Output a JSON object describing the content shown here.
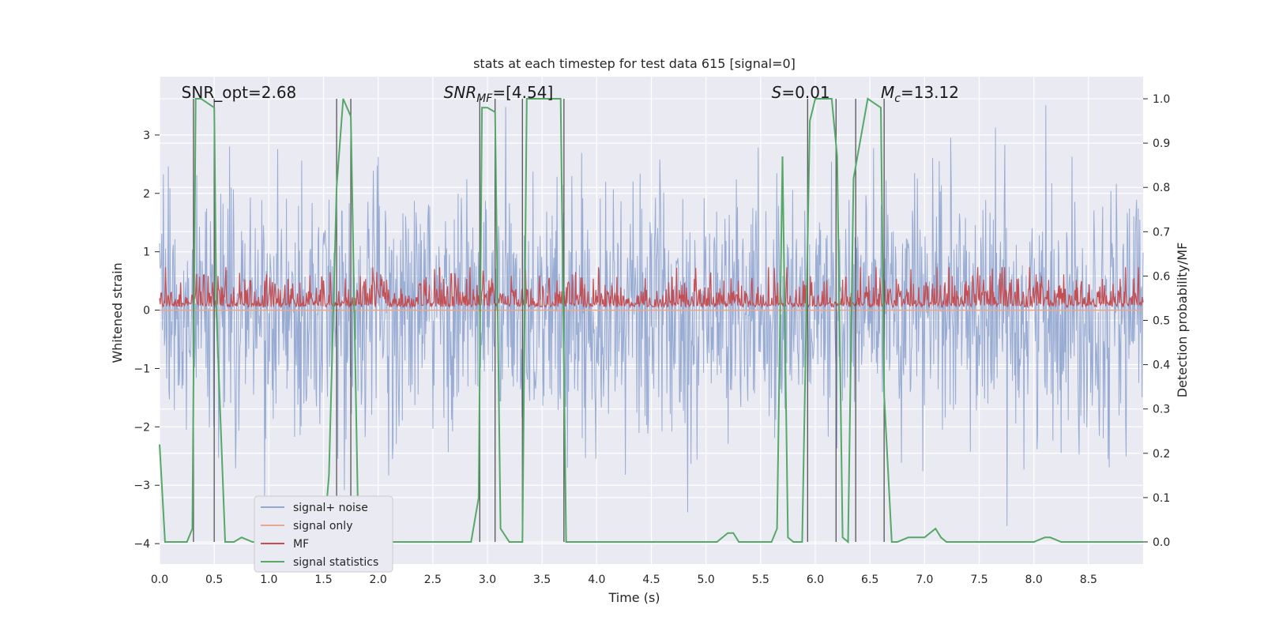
{
  "chart_data": {
    "type": "line",
    "title": "stats at each timestep for test data 615 [signal=0]",
    "xlabel": "Time (s)",
    "ylabel": "Whitened strain",
    "ylabel_right": "Detection probability/MF",
    "xlim": [
      0.0,
      9.0
    ],
    "ylim": [
      -4.35,
      4.0
    ],
    "ylim_right": [
      -0.05,
      1.05
    ],
    "x_ticks": [
      0.0,
      0.5,
      1.0,
      1.5,
      2.0,
      2.5,
      3.0,
      3.5,
      4.0,
      4.5,
      5.0,
      5.5,
      6.0,
      6.5,
      7.0,
      7.5,
      8.0,
      8.5
    ],
    "x_tick_labels": [
      "0.0",
      "0.5",
      "1.0",
      "1.5",
      "2.0",
      "2.5",
      "3.0",
      "3.5",
      "4.0",
      "4.5",
      "5.0",
      "5.5",
      "6.0",
      "6.5",
      "7.0",
      "7.5",
      "8.0",
      "8.5"
    ],
    "y_ticks": [
      -4,
      -3,
      -2,
      -1,
      0,
      1,
      2,
      3
    ],
    "y_tick_labels": [
      "−4",
      "−3",
      "−2",
      "−1",
      "0",
      "1",
      "2",
      "3"
    ],
    "y_right_ticks": [
      0.0,
      0.1,
      0.2,
      0.3,
      0.4,
      0.5,
      0.6,
      0.7,
      0.8,
      0.9,
      1.0
    ],
    "y_right_tick_labels": [
      "0.0",
      "0.1",
      "0.2",
      "0.3",
      "0.4",
      "0.5",
      "0.6",
      "0.7",
      "0.8",
      "0.9",
      "1.0"
    ],
    "annotations": [
      {
        "name": "snr-opt-annotation",
        "text": "SNR_opt=2.68",
        "x": 0.2
      },
      {
        "name": "snr-mf-annotation",
        "text": "SNR_MF=[4.54]",
        "x": 2.6
      },
      {
        "name": "s-annotation",
        "text": "S=0.01",
        "x": 5.6
      },
      {
        "name": "mc-annotation",
        "text": "M_c=13.12",
        "x": 6.6
      }
    ],
    "vertical_lines_x": [
      0.31,
      0.5,
      1.62,
      1.75,
      2.93,
      3.07,
      3.32,
      3.7,
      5.93,
      6.19,
      6.37,
      6.63
    ],
    "series": [
      {
        "name": "signal+ noise",
        "color": "#92a8d1",
        "kind": "noise",
        "amplitude_range": [
          -3.7,
          3.6
        ]
      },
      {
        "name": "signal only",
        "color": "#e8a88f",
        "kind": "flat",
        "value": 0.0
      },
      {
        "name": "MF",
        "color": "#c44e52",
        "kind": "mf",
        "value_range": [
          0.0,
          1.0
        ]
      },
      {
        "name": "signal statistics",
        "color": "#55a868",
        "kind": "line",
        "axis": "right",
        "x": [
          0.0,
          0.05,
          0.1,
          0.25,
          0.3,
          0.33,
          0.38,
          0.5,
          0.52,
          0.6,
          0.68,
          0.75,
          0.85,
          1.5,
          1.55,
          1.62,
          1.68,
          1.75,
          1.82,
          2.5,
          2.85,
          2.92,
          2.95,
          3.0,
          3.07,
          3.12,
          3.2,
          3.32,
          3.36,
          3.67,
          3.72,
          3.8,
          5.1,
          5.2,
          5.25,
          5.3,
          5.6,
          5.65,
          5.7,
          5.75,
          5.8,
          5.88,
          5.95,
          6.0,
          6.15,
          6.2,
          6.25,
          6.3,
          6.35,
          6.48,
          6.6,
          6.63,
          6.7,
          6.75,
          6.85,
          7.0,
          7.1,
          7.15,
          7.2,
          7.3,
          8.0,
          8.1,
          8.15,
          8.25,
          9.0
        ],
        "y": [
          0.22,
          0.0,
          0.0,
          0.0,
          0.03,
          1.0,
          1.0,
          0.98,
          0.52,
          0.0,
          0.0,
          0.01,
          0.0,
          0.0,
          0.15,
          0.8,
          1.0,
          0.96,
          0.0,
          0.0,
          0.0,
          0.1,
          0.98,
          0.98,
          0.97,
          0.03,
          0.0,
          0.0,
          1.0,
          1.0,
          0.0,
          0.0,
          0.0,
          0.02,
          0.02,
          0.0,
          0.0,
          0.03,
          0.87,
          0.01,
          0.0,
          0.0,
          0.95,
          1.0,
          1.0,
          0.87,
          0.01,
          0.0,
          0.82,
          1.0,
          0.98,
          0.33,
          0.0,
          0.0,
          0.01,
          0.01,
          0.03,
          0.01,
          0.0,
          0.0,
          0.0,
          0.01,
          0.01,
          0.0,
          0.0
        ]
      }
    ],
    "legend": {
      "position": "lower-left",
      "labels": [
        "signal+ noise",
        "signal only",
        "MF",
        "signal statistics"
      ]
    },
    "grid": true,
    "colors": {
      "background": "#eaeaf2",
      "grid": "#ffffff",
      "vline": "#555555",
      "text": "#262626"
    }
  }
}
